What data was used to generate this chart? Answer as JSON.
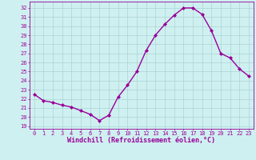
{
  "x": [
    0,
    1,
    2,
    3,
    4,
    5,
    6,
    7,
    8,
    9,
    10,
    11,
    12,
    13,
    14,
    15,
    16,
    17,
    18,
    19,
    20,
    21,
    22,
    23
  ],
  "y": [
    22.5,
    21.8,
    21.6,
    21.3,
    21.1,
    20.7,
    20.3,
    19.6,
    20.2,
    22.2,
    23.5,
    25.0,
    27.3,
    29.0,
    30.2,
    31.2,
    32.0,
    32.0,
    31.3,
    29.5,
    27.0,
    26.5,
    25.3,
    24.5
  ],
  "line_color": "#990099",
  "marker": "D",
  "markersize": 2.0,
  "linewidth": 1.0,
  "xlabel": "Windchill (Refroidissement éolien,°C)",
  "xlim_min": -0.5,
  "xlim_max": 23.5,
  "ylim_min": 18.7,
  "ylim_max": 32.7,
  "yticks": [
    19,
    20,
    21,
    22,
    23,
    24,
    25,
    26,
    27,
    28,
    29,
    30,
    31,
    32
  ],
  "xticks": [
    0,
    1,
    2,
    3,
    4,
    5,
    6,
    7,
    8,
    9,
    10,
    11,
    12,
    13,
    14,
    15,
    16,
    17,
    18,
    19,
    20,
    21,
    22,
    23
  ],
  "bg_color": "#cff0f0",
  "grid_color": "#aad4d4",
  "tick_label_color": "#990099",
  "axis_label_color": "#990099",
  "tick_fontsize": 5.0,
  "xlabel_fontsize": 6.0,
  "spine_color": "#990099"
}
